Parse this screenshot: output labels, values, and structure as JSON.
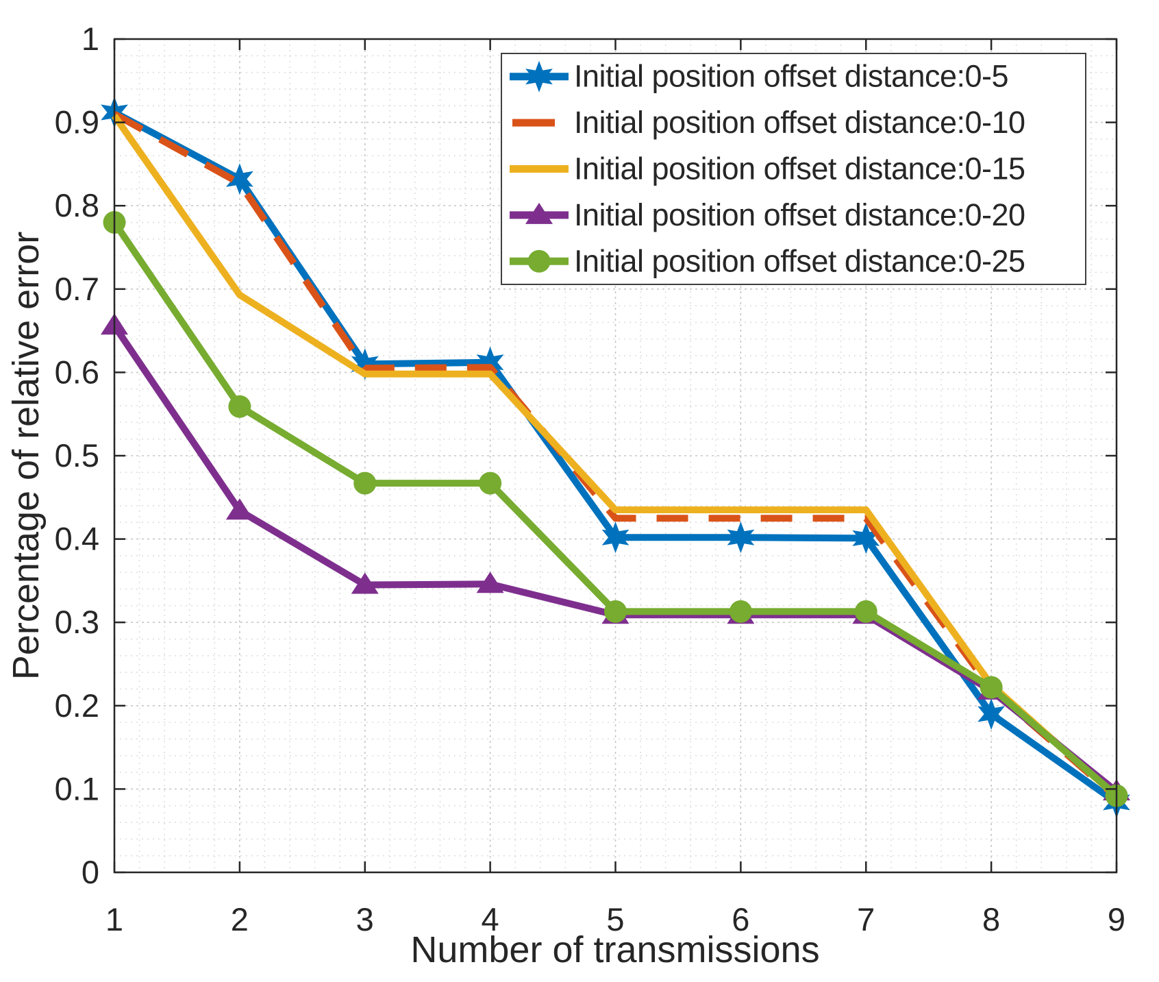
{
  "chart_data": {
    "type": "line",
    "title": "",
    "xlabel": "Number of transmissions",
    "ylabel": "Percentage of relative error",
    "x": [
      1,
      2,
      3,
      4,
      5,
      6,
      7,
      8,
      9
    ],
    "xlim": [
      1,
      9
    ],
    "ylim": [
      0,
      1
    ],
    "xticks": [
      1,
      2,
      3,
      4,
      5,
      6,
      7,
      8,
      9
    ],
    "xtick_labels": [
      "1",
      "2",
      "3",
      "4",
      "5",
      "6",
      "7",
      "8",
      "9"
    ],
    "yticks": [
      0,
      0.1,
      0.2,
      0.3,
      0.4,
      0.5,
      0.6,
      0.7,
      0.8,
      0.9,
      1
    ],
    "ytick_labels": [
      "0",
      "0.1",
      "0.2",
      "0.3",
      "0.4",
      "0.5",
      "0.6",
      "0.7",
      "0.8",
      "0.9",
      "1"
    ],
    "grid": {
      "major": true,
      "minor": true,
      "x_minor_step": 0.2,
      "y_minor_step": 0.02
    },
    "legend": {
      "position": "upper right",
      "border": true
    },
    "axis_color": "#262626",
    "major_grid_color": "#c6c6c6",
    "minor_grid_color": "#dedede",
    "background": "#ffffff",
    "series": [
      {
        "name": "Initial position offset distance:0-5",
        "color": "#0072BD",
        "line_style": "solid",
        "marker": "hexagram",
        "values": [
          0.912,
          0.832,
          0.61,
          0.612,
          0.402,
          0.402,
          0.401,
          0.19,
          0.084
        ]
      },
      {
        "name": "Initial position offset distance:0-10",
        "color": "#D95319",
        "line_style": "dashed",
        "marker": "none",
        "values": [
          0.91,
          0.827,
          0.605,
          0.606,
          0.425,
          0.425,
          0.425,
          0.22,
          0.09
        ]
      },
      {
        "name": "Initial position offset distance:0-15",
        "color": "#EDB120",
        "line_style": "solid",
        "marker": "none",
        "values": [
          0.908,
          0.693,
          0.598,
          0.598,
          0.435,
          0.435,
          0.435,
          0.225,
          0.091
        ]
      },
      {
        "name": "Initial position offset distance:0-20",
        "color": "#7E2F8E",
        "line_style": "solid",
        "marker": "triangle-up",
        "values": [
          0.656,
          0.434,
          0.345,
          0.346,
          0.309,
          0.309,
          0.309,
          0.218,
          0.097
        ]
      },
      {
        "name": "Initial position offset distance:0-25",
        "color": "#77AC30",
        "line_style": "solid",
        "marker": "circle",
        "values": [
          0.78,
          0.559,
          0.467,
          0.467,
          0.313,
          0.313,
          0.313,
          0.222,
          0.092
        ]
      }
    ]
  }
}
